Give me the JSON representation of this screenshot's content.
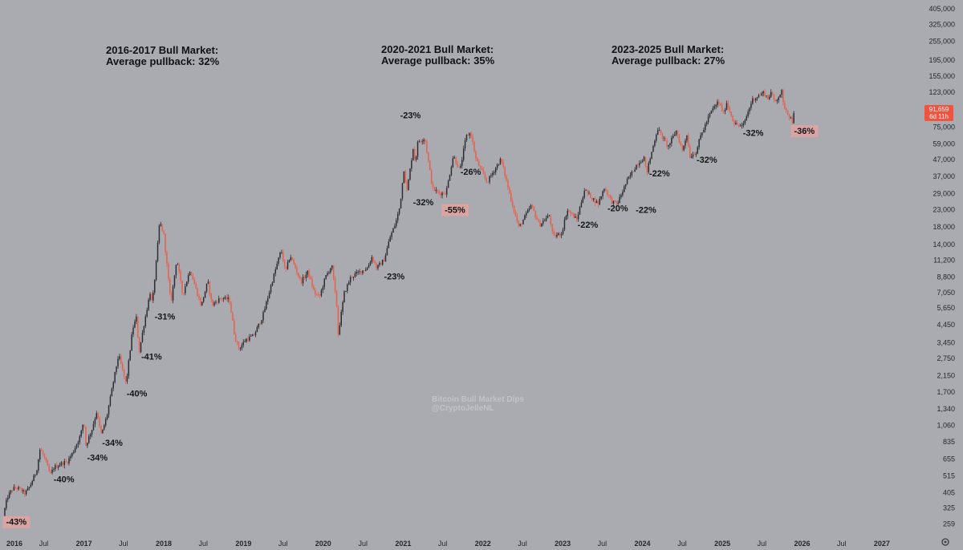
{
  "headings": [
    {
      "line1": "2016-2017 Bull Market:",
      "line2": "Average pullback: 32%"
    },
    {
      "line1": "2020-2021 Bull Market:",
      "line2": "Average pullback: 35%"
    },
    {
      "line1": "2023-2025 Bull Market:",
      "line2": "Average pullback: 27%"
    }
  ],
  "watermark": {
    "line1": "Bitcoin Bull Market Dips",
    "line2": "@CryptoJelleNL"
  },
  "price_tag": {
    "value": "91,659",
    "countdown": "6d 11h"
  },
  "settings_icon": "gear-icon",
  "colors": {
    "background": "#aaabb0",
    "up_candle": "#2c2d33",
    "down_candle": "#e8604c",
    "text": "#141518",
    "axis_text": "#26272c",
    "highlight": "#d9a4a1",
    "price_tag": "#f0543e"
  },
  "chart_data": {
    "type": "candlestick",
    "title": "",
    "x_axis": {
      "type": "time",
      "range": [
        "2016-01",
        "2027-06"
      ],
      "tick_labels": [
        "2016",
        "Jul",
        "2017",
        "Jul",
        "2018",
        "Jul",
        "2019",
        "Jul",
        "2020",
        "Jul",
        "2021",
        "Jul",
        "2022",
        "Jul",
        "2023",
        "Jul",
        "2024",
        "Jul",
        "2025",
        "Jul",
        "2026",
        "Jul",
        "2027"
      ],
      "tick_dates": [
        "2016-01",
        "2016-07",
        "2017-01",
        "2017-07",
        "2018-01",
        "2018-07",
        "2019-01",
        "2019-07",
        "2020-01",
        "2020-07",
        "2021-01",
        "2021-07",
        "2022-01",
        "2022-07",
        "2023-01",
        "2023-07",
        "2024-01",
        "2024-07",
        "2025-01",
        "2025-07",
        "2026-01",
        "2026-07",
        "2027-01"
      ],
      "bold_labels": [
        "2016",
        "2017",
        "2018",
        "2019",
        "2020",
        "2021",
        "2022",
        "2023",
        "2024",
        "2025",
        "2026",
        "2027"
      ]
    },
    "y_axis": {
      "scale": "log",
      "range": [
        240,
        420000
      ],
      "tick_labels": [
        "405,000",
        "325,000",
        "255,000",
        "195,000",
        "155,000",
        "123,000",
        "97,000",
        "75,000",
        "59,000",
        "47,000",
        "37,000",
        "29,000",
        "23,000",
        "18,000",
        "14,000",
        "11,200",
        "8,800",
        "7,050",
        "5,650",
        "4,450",
        "3,450",
        "2,750",
        "2,150",
        "1,700",
        "1,340",
        "1,060",
        "835",
        "655",
        "515",
        "405",
        "325",
        "259"
      ],
      "tick_values": [
        405000,
        325000,
        255000,
        195000,
        155000,
        123000,
        97000,
        75000,
        59000,
        47000,
        37000,
        29000,
        23000,
        18000,
        14000,
        11200,
        8800,
        7050,
        5650,
        4450,
        3450,
        2750,
        2150,
        1700,
        1340,
        1060,
        835,
        655,
        515,
        405,
        325,
        259
      ]
    },
    "path": [
      [
        "2016-01-01",
        290
      ],
      [
        "2016-01-20",
        380
      ],
      [
        "2016-02-15",
        430
      ],
      [
        "2016-03-10",
        430
      ],
      [
        "2016-04-10",
        400
      ],
      [
        "2016-05-01",
        440
      ],
      [
        "2016-06-01",
        550
      ],
      [
        "2016-06-18",
        760
      ],
      [
        "2016-07-05",
        680
      ],
      [
        "2016-08-03",
        520
      ],
      [
        "2016-08-20",
        580
      ],
      [
        "2016-09-20",
        610
      ],
      [
        "2016-10-20",
        630
      ],
      [
        "2016-11-15",
        720
      ],
      [
        "2016-12-20",
        920
      ],
      [
        "2017-01-04",
        1150
      ],
      [
        "2017-01-12",
        790
      ],
      [
        "2017-02-10",
        1000
      ],
      [
        "2017-03-03",
        1280
      ],
      [
        "2017-03-25",
        920
      ],
      [
        "2017-04-20",
        1220
      ],
      [
        "2017-05-20",
        2000
      ],
      [
        "2017-06-12",
        2900
      ],
      [
        "2017-07-16",
        1900
      ],
      [
        "2017-08-15",
        4200
      ],
      [
        "2017-09-01",
        4900
      ],
      [
        "2017-09-14",
        3000
      ],
      [
        "2017-10-05",
        4400
      ],
      [
        "2017-11-05",
        7300
      ],
      [
        "2017-11-12",
        5800
      ],
      [
        "2017-12-01",
        10800
      ],
      [
        "2017-12-17",
        19500
      ],
      [
        "2018-01-05",
        16000
      ],
      [
        "2018-02-06",
        6000
      ],
      [
        "2018-03-05",
        11500
      ],
      [
        "2018-04-01",
        6800
      ],
      [
        "2018-05-05",
        9800
      ],
      [
        "2018-06-25",
        5800
      ],
      [
        "2018-07-25",
        8300
      ],
      [
        "2018-08-14",
        5900
      ],
      [
        "2018-09-20",
        6500
      ],
      [
        "2018-11-01",
        6400
      ],
      [
        "2018-11-25",
        3800
      ],
      [
        "2018-12-15",
        3150
      ],
      [
        "2019-01-15",
        3600
      ],
      [
        "2019-02-20",
        3800
      ],
      [
        "2019-04-02",
        5000
      ],
      [
        "2019-05-15",
        8200
      ],
      [
        "2019-06-26",
        13000
      ],
      [
        "2019-07-16",
        9400
      ],
      [
        "2019-08-06",
        12000
      ],
      [
        "2019-09-25",
        8200
      ],
      [
        "2019-10-27",
        9500
      ],
      [
        "2019-11-25",
        7000
      ],
      [
        "2019-12-18",
        6600
      ],
      [
        "2020-01-15",
        8800
      ],
      [
        "2020-02-13",
        10400
      ],
      [
        "2020-03-12",
        5000
      ],
      [
        "2020-03-13",
        3900
      ],
      [
        "2020-04-10",
        7000
      ],
      [
        "2020-05-10",
        8800
      ],
      [
        "2020-06-15",
        9400
      ],
      [
        "2020-07-25",
        10000
      ],
      [
        "2020-08-15",
        11800
      ],
      [
        "2020-09-05",
        10000
      ],
      [
        "2020-10-10",
        11300
      ],
      [
        "2020-11-05",
        15500
      ],
      [
        "2020-12-01",
        19000
      ],
      [
        "2020-12-20",
        24000
      ],
      [
        "2021-01-08",
        41000
      ],
      [
        "2021-01-22",
        30000
      ],
      [
        "2021-02-21",
        58000
      ],
      [
        "2021-02-28",
        44000
      ],
      [
        "2021-03-13",
        61000
      ],
      [
        "2021-04-14",
        64000
      ],
      [
        "2021-05-19",
        31000
      ],
      [
        "2021-06-22",
        29000
      ],
      [
        "2021-07-20",
        29500
      ],
      [
        "2021-08-22",
        50000
      ],
      [
        "2021-09-21",
        40000
      ],
      [
        "2021-10-20",
        66000
      ],
      [
        "2021-11-10",
        69000
      ],
      [
        "2021-12-04",
        47000
      ],
      [
        "2022-01-23",
        34000
      ],
      [
        "2022-03-28",
        47500
      ],
      [
        "2022-05-12",
        27000
      ],
      [
        "2022-06-18",
        17800
      ],
      [
        "2022-08-14",
        24500
      ],
      [
        "2022-09-20",
        18500
      ],
      [
        "2022-11-05",
        21300
      ],
      [
        "2022-11-21",
        15600
      ],
      [
        "2022-12-31",
        16500
      ],
      [
        "2023-01-25",
        23000
      ],
      [
        "2023-03-10",
        20000
      ],
      [
        "2023-04-14",
        30500
      ],
      [
        "2023-06-15",
        25000
      ],
      [
        "2023-07-14",
        31500
      ],
      [
        "2023-08-18",
        25800
      ],
      [
        "2023-09-11",
        25000
      ],
      [
        "2023-10-25",
        34500
      ],
      [
        "2023-12-10",
        44000
      ],
      [
        "2024-01-12",
        48500
      ],
      [
        "2024-01-23",
        38500
      ],
      [
        "2024-02-29",
        62000
      ],
      [
        "2024-03-14",
        73500
      ],
      [
        "2024-05-01",
        56500
      ],
      [
        "2024-06-07",
        71000
      ],
      [
        "2024-07-05",
        53500
      ],
      [
        "2024-07-29",
        70000
      ],
      [
        "2024-08-05",
        49000
      ],
      [
        "2024-09-06",
        52500
      ],
      [
        "2024-09-27",
        66000
      ],
      [
        "2024-11-13",
        93000
      ],
      [
        "2024-12-17",
        108000
      ],
      [
        "2025-01-13",
        89000
      ],
      [
        "2025-01-21",
        109000
      ],
      [
        "2025-02-28",
        79000
      ],
      [
        "2025-04-07",
        75000
      ],
      [
        "2025-05-22",
        111000
      ],
      [
        "2025-07-14",
        123000
      ],
      [
        "2025-08-02",
        112000
      ],
      [
        "2025-08-14",
        124000
      ],
      [
        "2025-09-01",
        107000
      ],
      [
        "2025-10-06",
        126000
      ],
      [
        "2025-10-10",
        104000
      ],
      [
        "2025-11-21",
        81000
      ],
      [
        "2025-11-27",
        91659
      ]
    ],
    "last_price": 91659,
    "annotations": [
      {
        "text": "-43%",
        "date": "2016-01-10",
        "price": 255,
        "highlight": true
      },
      {
        "text": "-40%",
        "date": "2016-08-15",
        "price": 470,
        "highlight": false
      },
      {
        "text": "-34%",
        "date": "2017-01-15",
        "price": 640,
        "highlight": false
      },
      {
        "text": "-34%",
        "date": "2017-03-25",
        "price": 790,
        "highlight": false
      },
      {
        "text": "-40%",
        "date": "2017-07-15",
        "price": 1600,
        "highlight": false
      },
      {
        "text": "-41%",
        "date": "2017-09-20",
        "price": 2700,
        "highlight": false
      },
      {
        "text": "-31%",
        "date": "2017-11-20",
        "price": 4800,
        "highlight": false
      },
      {
        "text": "-23%",
        "date": "2020-10-05",
        "price": 8500,
        "highlight": false
      },
      {
        "text": "-32%",
        "date": "2021-02-15",
        "price": 24500,
        "highlight": false
      },
      {
        "text": "-23%",
        "date": "2020-12-18",
        "price": 85000,
        "highlight": false
      },
      {
        "text": "-55%",
        "date": "2021-07-10",
        "price": 22000,
        "highlight": true
      },
      {
        "text": "-26%",
        "date": "2021-09-20",
        "price": 38000,
        "highlight": false
      },
      {
        "text": "-22%",
        "date": "2023-03-10",
        "price": 17800,
        "highlight": false
      },
      {
        "text": "-20%",
        "date": "2023-07-25",
        "price": 22500,
        "highlight": false
      },
      {
        "text": "-22%",
        "date": "2023-12-01",
        "price": 22000,
        "highlight": false
      },
      {
        "text": "-22%",
        "date": "2024-02-01",
        "price": 37000,
        "highlight": false
      },
      {
        "text": "-32%",
        "date": "2024-09-05",
        "price": 45000,
        "highlight": false
      },
      {
        "text": "-32%",
        "date": "2025-04-05",
        "price": 66000,
        "highlight": false
      },
      {
        "text": "-36%",
        "date": "2025-11-25",
        "price": 68000,
        "highlight": true
      }
    ]
  }
}
